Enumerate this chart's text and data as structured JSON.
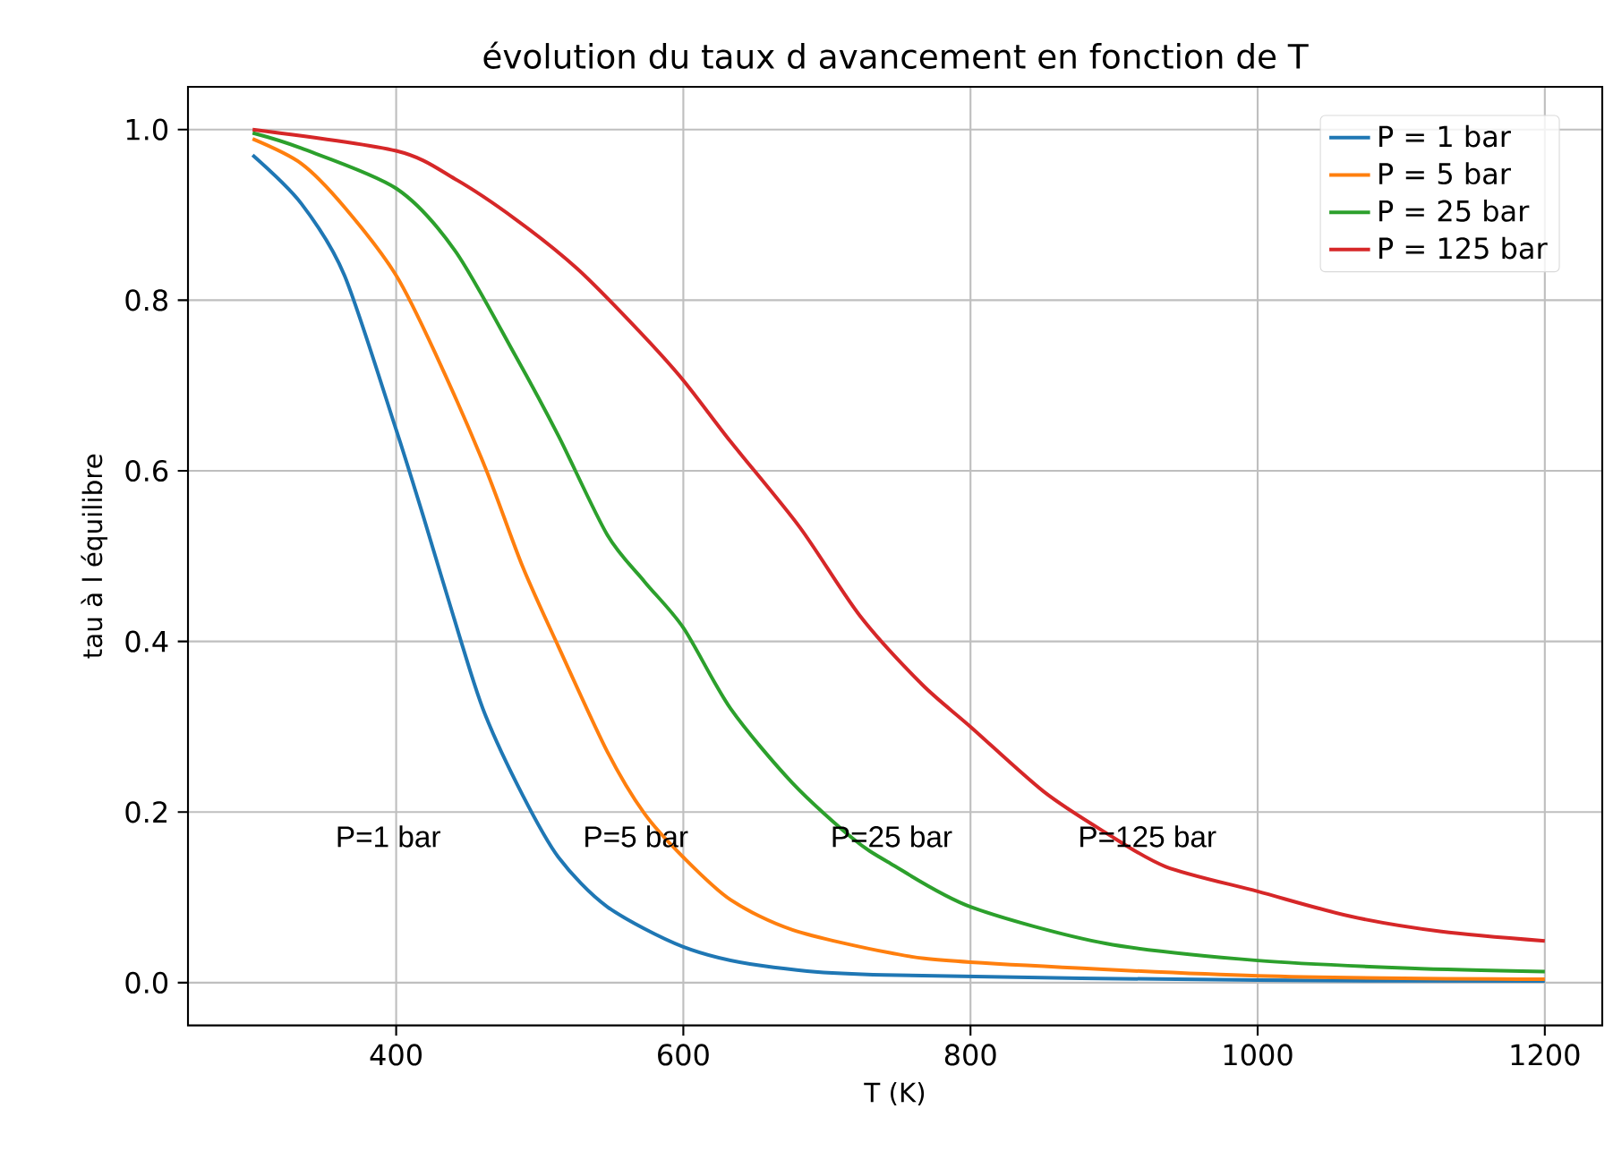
{
  "chart_data": {
    "type": "line",
    "title": "évolution du taux d avancement en fonction de T",
    "xlabel": "T (K)",
    "ylabel": "tau à l équilibre",
    "xlim": [
      255,
      1240
    ],
    "ylim": [
      -0.05,
      1.05
    ],
    "xticks": [
      400,
      600,
      800,
      1000,
      1200
    ],
    "yticks": [
      {
        "value": 0,
        "label": "0.0"
      },
      {
        "value": 0.2,
        "label": "0.2"
      },
      {
        "value": 0.4,
        "label": "0.4"
      },
      {
        "value": 0.6,
        "label": "0.6"
      },
      {
        "value": 0.8,
        "label": "0.8"
      },
      {
        "value": 1,
        "label": "1.0"
      }
    ],
    "grid": true,
    "legend": "top right",
    "series": [
      {
        "name": "P = 1 bar",
        "color": "#1f77b4",
        "x": [
          300,
          334,
          364,
          400,
          419,
          445,
          462,
          488,
          513,
          547,
          600,
          654,
          740,
          1000,
          1200
        ],
        "values": [
          0.97,
          0.913,
          0.829,
          0.648,
          0.546,
          0.401,
          0.314,
          0.22,
          0.147,
          0.089,
          0.042,
          0.02,
          0.009,
          0.003,
          0.002
        ]
      },
      {
        "name": "P = 5 bar",
        "color": "#ff7f0e",
        "x": [
          300,
          334,
          364,
          400,
          428,
          462,
          488,
          513,
          547,
          573,
          600,
          633,
          676,
          744,
          800,
          1000,
          1200
        ],
        "values": [
          0.989,
          0.96,
          0.909,
          0.829,
          0.735,
          0.604,
          0.488,
          0.394,
          0.271,
          0.198,
          0.147,
          0.097,
          0.062,
          0.035,
          0.024,
          0.008,
          0.004
        ]
      },
      {
        "name": "P = 25 bar",
        "color": "#2ca02c",
        "x": [
          300,
          334,
          400,
          441,
          483,
          513,
          547,
          573,
          600,
          633,
          676,
          718,
          744,
          800,
          894,
          1000,
          1106,
          1200
        ],
        "values": [
          0.996,
          0.978,
          0.931,
          0.858,
          0.735,
          0.641,
          0.525,
          0.47,
          0.416,
          0.321,
          0.234,
          0.169,
          0.14,
          0.089,
          0.046,
          0.026,
          0.017,
          0.013
        ]
      },
      {
        "name": "P = 125 bar",
        "color": "#d62728",
        "x": [
          300,
          400,
          441,
          483,
          526,
          569,
          600,
          633,
          681,
          723,
          766,
          800,
          851,
          894,
          936,
          1000,
          1064,
          1128,
          1200
        ],
        "values": [
          1.0,
          0.975,
          0.942,
          0.895,
          0.837,
          0.764,
          0.706,
          0.634,
          0.534,
          0.43,
          0.35,
          0.3,
          0.224,
          0.176,
          0.136,
          0.107,
          0.078,
          0.06,
          0.049
        ]
      }
    ],
    "annotations": [
      "P=1 bar",
      "P=5 bar",
      "P=25 bar",
      "P=125 bar"
    ]
  }
}
